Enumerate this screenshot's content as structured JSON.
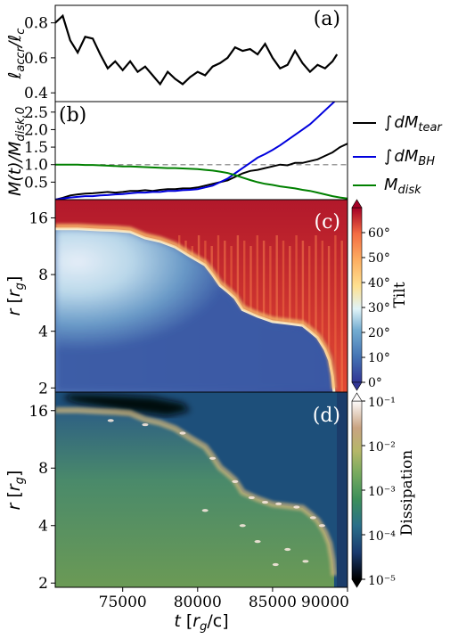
{
  "chart_data": [
    {
      "panel_label": "(a)",
      "type": "line",
      "ylabel": "ℓ_accr/ℓ_c",
      "ylim": [
        0.35,
        0.9
      ],
      "yticks": [
        "0.4",
        "0.6",
        "0.8"
      ],
      "xlim": [
        70500,
        90000
      ],
      "x": [
        70500,
        71000,
        71500,
        72000,
        72500,
        73000,
        73500,
        74000,
        74500,
        75000,
        75500,
        76000,
        76500,
        77000,
        77500,
        78000,
        78500,
        79000,
        79500,
        80000,
        80500,
        81000,
        81500,
        82000,
        82500,
        83000,
        83500,
        84000,
        84500,
        85000,
        85500,
        86000,
        86500,
        87000,
        87500,
        88000,
        88500,
        89000,
        89300
      ],
      "y": [
        0.8,
        0.84,
        0.7,
        0.63,
        0.72,
        0.71,
        0.62,
        0.54,
        0.58,
        0.53,
        0.58,
        0.52,
        0.55,
        0.5,
        0.45,
        0.52,
        0.48,
        0.45,
        0.49,
        0.52,
        0.5,
        0.55,
        0.57,
        0.6,
        0.66,
        0.64,
        0.65,
        0.62,
        0.68,
        0.6,
        0.54,
        0.56,
        0.64,
        0.57,
        0.52,
        0.56,
        0.54,
        0.58,
        0.62
      ],
      "series": [
        {
          "color": "#000000"
        }
      ]
    },
    {
      "panel_label": "(b)",
      "type": "line",
      "ylabel": "M(t)/M_disk,0",
      "ylim": [
        0,
        2.8
      ],
      "yticks": [
        "0.5",
        "1.0",
        "1.5",
        "2.0",
        "2.5"
      ],
      "xlim": [
        70500,
        90000
      ],
      "reference_line": {
        "y": 1.0,
        "color": "#999999",
        "style": "dashed",
        "x_start": 73500
      },
      "x": [
        70500,
        71000,
        71500,
        72000,
        72500,
        73000,
        73500,
        74000,
        74500,
        75000,
        75500,
        76000,
        76500,
        77000,
        77500,
        78000,
        78500,
        79000,
        79500,
        80000,
        80500,
        81000,
        81500,
        82000,
        82500,
        83000,
        83500,
        84000,
        84500,
        85000,
        85500,
        86000,
        86500,
        87000,
        87500,
        88000,
        88500,
        89000,
        89500,
        90000
      ],
      "series": [
        {
          "name": "∫dM_tear",
          "color": "#000000",
          "values": [
            0.0,
            0.05,
            0.12,
            0.15,
            0.17,
            0.18,
            0.2,
            0.22,
            0.2,
            0.22,
            0.25,
            0.25,
            0.27,
            0.25,
            0.28,
            0.3,
            0.3,
            0.32,
            0.32,
            0.35,
            0.4,
            0.45,
            0.5,
            0.55,
            0.65,
            0.75,
            0.82,
            0.85,
            0.9,
            0.95,
            1.0,
            0.98,
            1.05,
            1.05,
            1.1,
            1.15,
            1.25,
            1.35,
            1.5,
            1.6
          ]
        },
        {
          "name": "∫dM_BH",
          "color": "#0000dd",
          "values": [
            0.0,
            0.03,
            0.06,
            0.08,
            0.1,
            0.1,
            0.12,
            0.13,
            0.15,
            0.16,
            0.18,
            0.2,
            0.2,
            0.22,
            0.22,
            0.25,
            0.25,
            0.27,
            0.28,
            0.3,
            0.35,
            0.4,
            0.5,
            0.6,
            0.75,
            0.9,
            1.05,
            1.2,
            1.3,
            1.42,
            1.55,
            1.7,
            1.85,
            2.0,
            2.15,
            2.35,
            2.55,
            2.75,
            2.95,
            3.1
          ]
        },
        {
          "name": "M_disk",
          "color": "#008000",
          "values": [
            1.0,
            1.0,
            1.0,
            1.0,
            0.99,
            0.99,
            0.98,
            0.97,
            0.96,
            0.95,
            0.95,
            0.94,
            0.93,
            0.92,
            0.91,
            0.9,
            0.9,
            0.89,
            0.88,
            0.87,
            0.85,
            0.83,
            0.8,
            0.76,
            0.7,
            0.63,
            0.56,
            0.5,
            0.45,
            0.42,
            0.38,
            0.35,
            0.32,
            0.28,
            0.25,
            0.2,
            0.15,
            0.1,
            0.06,
            0.03
          ]
        }
      ]
    },
    {
      "panel_label": "(c)",
      "type": "heatmap",
      "ylabel": "r [r_g]",
      "yscale": "log",
      "ylim": [
        1.9,
        20
      ],
      "yticks": [
        "2",
        "4",
        "8",
        "16"
      ],
      "xlim": [
        70500,
        90000
      ],
      "colorbar": {
        "label": "Tilt",
        "range": [
          0,
          70
        ],
        "ticks": [
          "0°",
          "10°",
          "20°",
          "30°",
          "40°",
          "50°",
          "60°"
        ],
        "colormap": "RdYlBu_r"
      },
      "boundary": {
        "description": "interface between aligned inner disk (low tilt) and tilted outer disk (high tilt)",
        "t": [
          70500,
          72000,
          73500,
          74500,
          75500,
          76500,
          77500,
          78500,
          79500,
          80500,
          81000,
          81500,
          82000,
          82500,
          83000,
          84000,
          85000,
          86000,
          87000,
          87500,
          88000,
          88500,
          88800,
          89000,
          89100
        ],
        "r": [
          14.0,
          14.0,
          13.8,
          13.7,
          13.5,
          12.5,
          12.0,
          11.2,
          10.0,
          9.0,
          8.0,
          7.0,
          6.5,
          6.0,
          5.2,
          4.8,
          4.5,
          4.4,
          4.3,
          4.0,
          3.7,
          3.2,
          2.8,
          2.3,
          1.9
        ]
      }
    },
    {
      "panel_label": "(d)",
      "type": "heatmap",
      "ylabel": "r [r_g]",
      "xlabel": "t [r_g/c]",
      "yscale": "log",
      "ylim": [
        1.9,
        20
      ],
      "yticks": [
        "2",
        "4",
        "8",
        "16"
      ],
      "xlim": [
        70500,
        90000
      ],
      "xticks": [
        "75000",
        "80000",
        "85000",
        "90000"
      ],
      "colorbar": {
        "label": "Dissipation",
        "scale": "log",
        "range": [
          1e-05,
          0.1
        ],
        "ticks": [
          "10⁻⁵",
          "10⁻⁴",
          "10⁻³",
          "10⁻²",
          "10⁻¹"
        ],
        "colormap": "gist_earth"
      }
    }
  ]
}
